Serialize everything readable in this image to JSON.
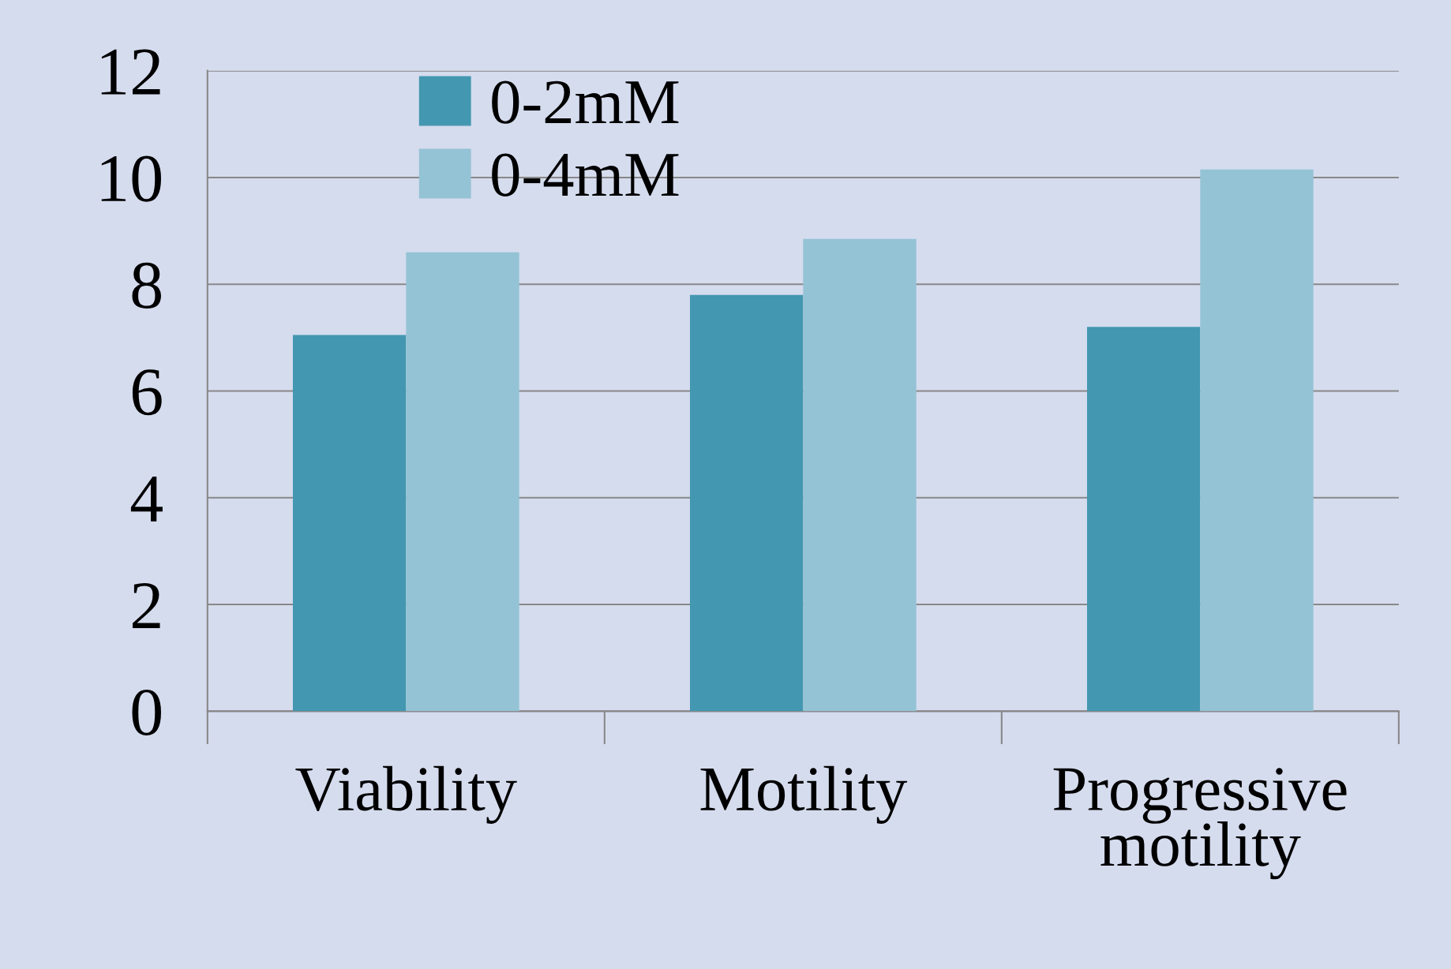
{
  "chart_data": {
    "type": "bar",
    "categories": [
      "Viability",
      "Motility",
      "Progressive\nmotility"
    ],
    "series": [
      {
        "name": "0-2mM",
        "color": "#4397b0",
        "values": [
          7.05,
          7.8,
          7.2
        ]
      },
      {
        "name": "0-4mM",
        "color": "#94c3d5",
        "values": [
          8.6,
          8.85,
          10.15
        ]
      }
    ],
    "ylim": [
      0,
      12
    ],
    "yticks": [
      0,
      2,
      4,
      6,
      8,
      10,
      12
    ],
    "grid": "y",
    "legend": "top left"
  }
}
